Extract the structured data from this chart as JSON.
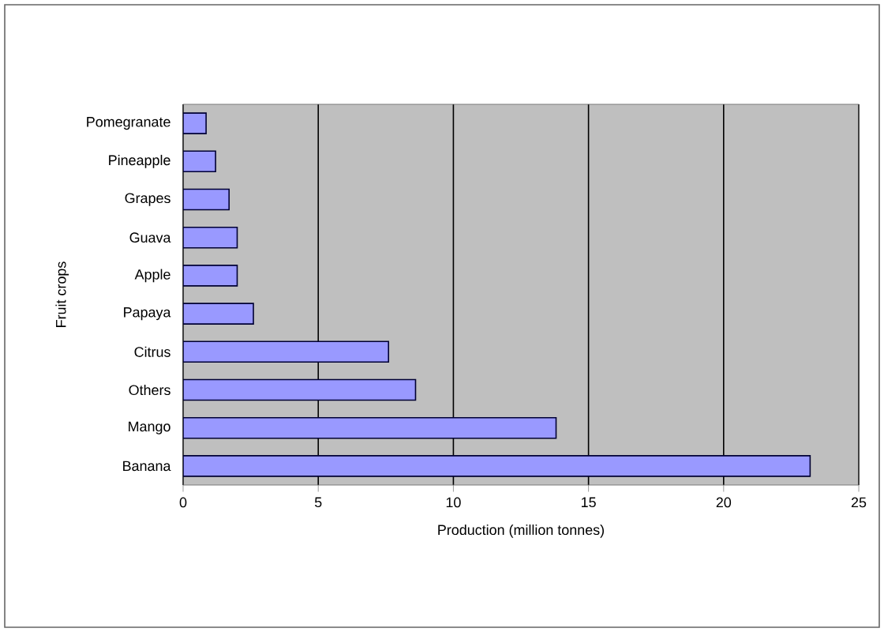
{
  "chart_data": {
    "type": "bar",
    "orientation": "horizontal",
    "xlabel": "Production (million tonnes)",
    "ylabel": "Fruit crops",
    "categories": [
      "Pomegranate",
      "Pineapple",
      "Grapes",
      "Guava",
      "Apple",
      "Papaya",
      "Citrus",
      "Others",
      "Mango",
      "Banana"
    ],
    "values": [
      0.85,
      1.2,
      1.7,
      2.0,
      2.0,
      2.6,
      7.6,
      8.6,
      13.8,
      23.2
    ],
    "color": "#9999ff",
    "xlim": [
      0,
      25
    ],
    "xticks": [
      0,
      5,
      10,
      15,
      20,
      25
    ],
    "grid": "x"
  }
}
